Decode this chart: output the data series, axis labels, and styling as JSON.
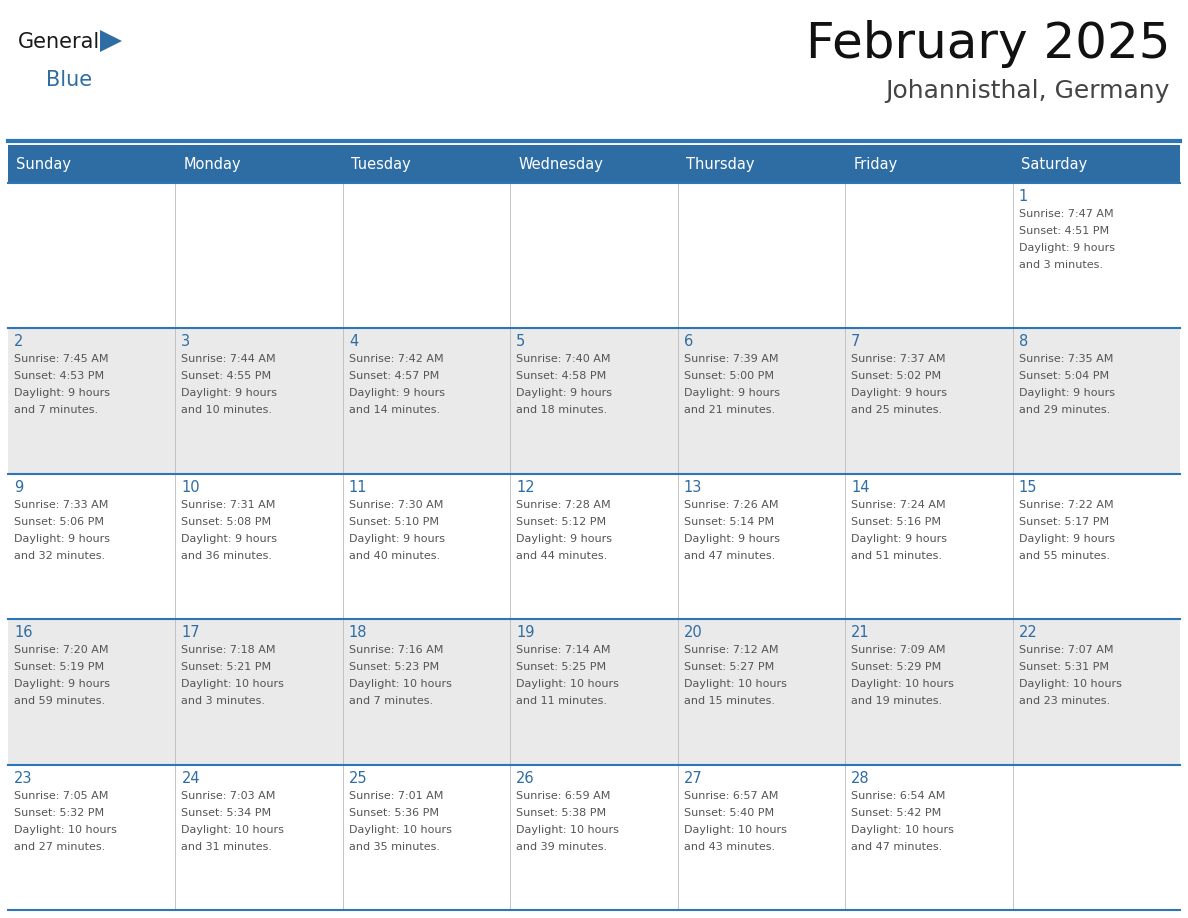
{
  "title": "February 2025",
  "subtitle": "Johannisthal, Germany",
  "header_bg": "#2E6DA4",
  "header_text_color": "#FFFFFF",
  "days_of_week": [
    "Sunday",
    "Monday",
    "Tuesday",
    "Wednesday",
    "Thursday",
    "Friday",
    "Saturday"
  ],
  "cell_bg_light": "#EAEAEA",
  "cell_bg_white": "#FFFFFF",
  "divider_color": "#2E75B6",
  "text_color": "#555555",
  "day_num_color": "#2E6DA4",
  "logo_general_color": "#1A1A1A",
  "logo_blue_color": "#2E6DA4",
  "calendar_data": [
    [
      null,
      null,
      null,
      null,
      null,
      null,
      {
        "day": 1,
        "sunrise": "7:47 AM",
        "sunset": "4:51 PM",
        "daylight": "9 hours and 3 minutes."
      }
    ],
    [
      {
        "day": 2,
        "sunrise": "7:45 AM",
        "sunset": "4:53 PM",
        "daylight": "9 hours and 7 minutes."
      },
      {
        "day": 3,
        "sunrise": "7:44 AM",
        "sunset": "4:55 PM",
        "daylight": "9 hours and 10 minutes."
      },
      {
        "day": 4,
        "sunrise": "7:42 AM",
        "sunset": "4:57 PM",
        "daylight": "9 hours and 14 minutes."
      },
      {
        "day": 5,
        "sunrise": "7:40 AM",
        "sunset": "4:58 PM",
        "daylight": "9 hours and 18 minutes."
      },
      {
        "day": 6,
        "sunrise": "7:39 AM",
        "sunset": "5:00 PM",
        "daylight": "9 hours and 21 minutes."
      },
      {
        "day": 7,
        "sunrise": "7:37 AM",
        "sunset": "5:02 PM",
        "daylight": "9 hours and 25 minutes."
      },
      {
        "day": 8,
        "sunrise": "7:35 AM",
        "sunset": "5:04 PM",
        "daylight": "9 hours and 29 minutes."
      }
    ],
    [
      {
        "day": 9,
        "sunrise": "7:33 AM",
        "sunset": "5:06 PM",
        "daylight": "9 hours and 32 minutes."
      },
      {
        "day": 10,
        "sunrise": "7:31 AM",
        "sunset": "5:08 PM",
        "daylight": "9 hours and 36 minutes."
      },
      {
        "day": 11,
        "sunrise": "7:30 AM",
        "sunset": "5:10 PM",
        "daylight": "9 hours and 40 minutes."
      },
      {
        "day": 12,
        "sunrise": "7:28 AM",
        "sunset": "5:12 PM",
        "daylight": "9 hours and 44 minutes."
      },
      {
        "day": 13,
        "sunrise": "7:26 AM",
        "sunset": "5:14 PM",
        "daylight": "9 hours and 47 minutes."
      },
      {
        "day": 14,
        "sunrise": "7:24 AM",
        "sunset": "5:16 PM",
        "daylight": "9 hours and 51 minutes."
      },
      {
        "day": 15,
        "sunrise": "7:22 AM",
        "sunset": "5:17 PM",
        "daylight": "9 hours and 55 minutes."
      }
    ],
    [
      {
        "day": 16,
        "sunrise": "7:20 AM",
        "sunset": "5:19 PM",
        "daylight": "9 hours and 59 minutes."
      },
      {
        "day": 17,
        "sunrise": "7:18 AM",
        "sunset": "5:21 PM",
        "daylight": "10 hours and 3 minutes."
      },
      {
        "day": 18,
        "sunrise": "7:16 AM",
        "sunset": "5:23 PM",
        "daylight": "10 hours and 7 minutes."
      },
      {
        "day": 19,
        "sunrise": "7:14 AM",
        "sunset": "5:25 PM",
        "daylight": "10 hours and 11 minutes."
      },
      {
        "day": 20,
        "sunrise": "7:12 AM",
        "sunset": "5:27 PM",
        "daylight": "10 hours and 15 minutes."
      },
      {
        "day": 21,
        "sunrise": "7:09 AM",
        "sunset": "5:29 PM",
        "daylight": "10 hours and 19 minutes."
      },
      {
        "day": 22,
        "sunrise": "7:07 AM",
        "sunset": "5:31 PM",
        "daylight": "10 hours and 23 minutes."
      }
    ],
    [
      {
        "day": 23,
        "sunrise": "7:05 AM",
        "sunset": "5:32 PM",
        "daylight": "10 hours and 27 minutes."
      },
      {
        "day": 24,
        "sunrise": "7:03 AM",
        "sunset": "5:34 PM",
        "daylight": "10 hours and 31 minutes."
      },
      {
        "day": 25,
        "sunrise": "7:01 AM",
        "sunset": "5:36 PM",
        "daylight": "10 hours and 35 minutes."
      },
      {
        "day": 26,
        "sunrise": "6:59 AM",
        "sunset": "5:38 PM",
        "daylight": "10 hours and 39 minutes."
      },
      {
        "day": 27,
        "sunrise": "6:57 AM",
        "sunset": "5:40 PM",
        "daylight": "10 hours and 43 minutes."
      },
      {
        "day": 28,
        "sunrise": "6:54 AM",
        "sunset": "5:42 PM",
        "daylight": "10 hours and 47 minutes."
      },
      null
    ]
  ]
}
